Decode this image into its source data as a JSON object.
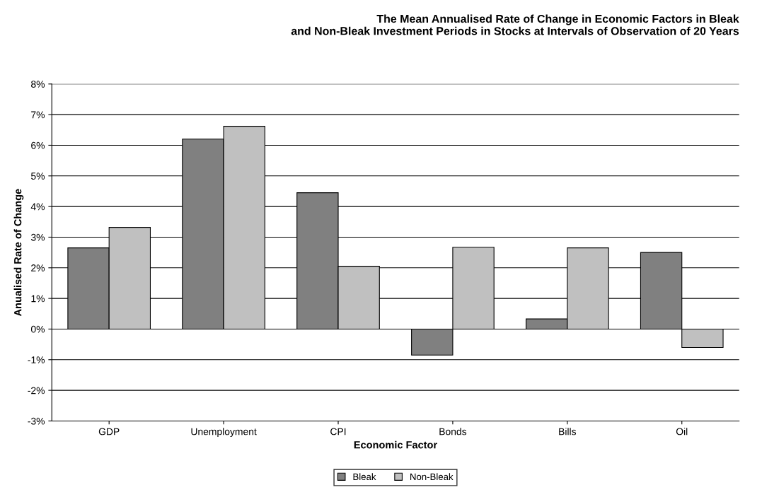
{
  "chart_data": {
    "type": "bar",
    "title": "The Mean Annualised Rate of Change in Economic Factors in Bleak\nand Non-Bleak Investment Periods in Stocks at Intervals of Observation of 20 Years",
    "xlabel": "Economic Factor",
    "ylabel": "Anualised Rate of Change",
    "categories": [
      "GDP",
      "Unemployment",
      "CPI",
      "Bonds",
      "Bills",
      "Oil"
    ],
    "series": [
      {
        "name": "Bleak",
        "color": "#808080",
        "values": [
          2.65,
          6.2,
          4.45,
          -0.85,
          0.33,
          2.5
        ]
      },
      {
        "name": "Non-Bleak",
        "color": "#c0c0c0",
        "values": [
          3.32,
          6.62,
          2.05,
          2.67,
          2.65,
          -0.6
        ]
      }
    ],
    "ylim": [
      -3,
      8
    ],
    "yticks": [
      {
        "value": -3,
        "label": "-3%"
      },
      {
        "value": -2,
        "label": "-2%"
      },
      {
        "value": -1,
        "label": "-1%"
      },
      {
        "value": 0,
        "label": "0%"
      },
      {
        "value": 1,
        "label": "1%"
      },
      {
        "value": 2,
        "label": "2%"
      },
      {
        "value": 3,
        "label": "3%"
      },
      {
        "value": 4,
        "label": "4%"
      },
      {
        "value": 5,
        "label": "5%"
      },
      {
        "value": 6,
        "label": "6%"
      },
      {
        "value": 7,
        "label": "7%"
      },
      {
        "value": 8,
        "label": "8%"
      }
    ],
    "grid": "y",
    "legend": "bottom"
  }
}
